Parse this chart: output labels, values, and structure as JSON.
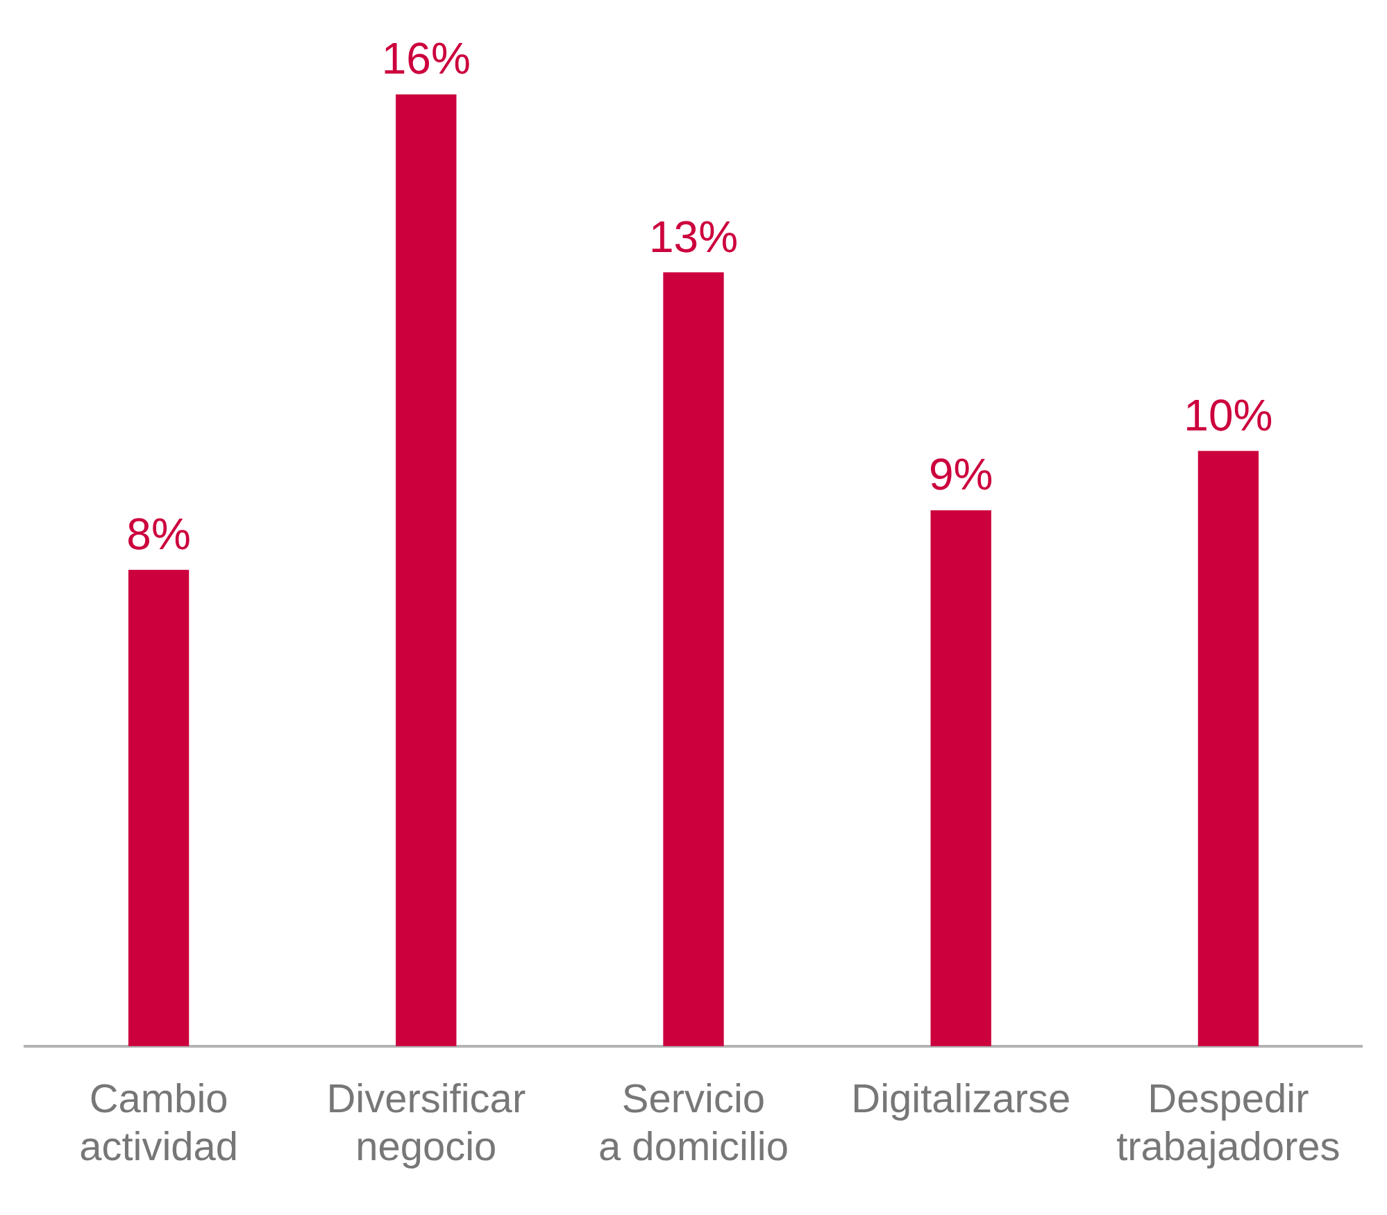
{
  "chart_data": {
    "type": "bar",
    "categories": [
      "Cambio actividad",
      "Diversificar negocio",
      "Servicio a domicilio",
      "Digitalizarse",
      "Despedir trabajadores"
    ],
    "values": [
      8,
      16,
      13,
      9,
      10
    ],
    "value_labels": [
      "8%",
      "16%",
      "13%",
      "9%",
      "10%"
    ],
    "color": "#cc003d",
    "grid": false,
    "legend": false
  }
}
